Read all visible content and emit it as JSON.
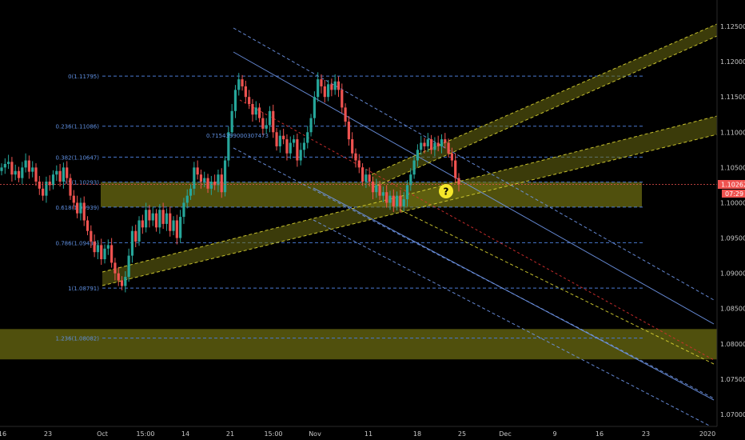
{
  "chart_data": {
    "type": "candlestick",
    "title": "",
    "price_scale": {
      "ticks": [
        "1.12500",
        "1.12000",
        "1.11500",
        "1.11000",
        "1.10500",
        "1.10000",
        "1.09500",
        "1.09000",
        "1.08500",
        "1.08000",
        "1.07500",
        "1.07000"
      ],
      "range": [
        1.0685,
        1.127
      ]
    },
    "time_axis": {
      "labels": [
        "16",
        "23",
        "Oct",
        "15:00",
        "14",
        "21",
        "15:00",
        "Nov",
        "11",
        "18",
        "25",
        "Dec",
        "9",
        "16",
        "23",
        "2020"
      ]
    },
    "current_price": {
      "label": "1.10262",
      "value": 1.10262,
      "countdown": "07:29"
    },
    "fibonacci": [
      {
        "ratio": "0",
        "label": "0(1.11795)",
        "value": 1.11795
      },
      {
        "ratio": "0.236",
        "label": "0.236(1.11086)",
        "value": 1.11086
      },
      {
        "ratio": "0.382",
        "label": "0.382(1.10647)",
        "value": 1.10647
      },
      {
        "ratio": "0.5",
        "label": "0.5(1.10293)",
        "value": 1.10293
      },
      {
        "ratio": "0.618",
        "label": "0.618(1.09939)",
        "value": 1.09939
      },
      {
        "ratio": "0.786",
        "label": "0.786(1.09434)",
        "value": 1.09434
      },
      {
        "ratio": "1",
        "label": "1(1.08791)",
        "value": 1.08791
      },
      {
        "ratio": "1.236",
        "label": "1.236(1.08082)",
        "value": 1.08082
      }
    ],
    "annotation": {
      "label": "0.7154399000307473"
    },
    "question_marker": "?",
    "zones": [
      {
        "name": "support-zone-upper",
        "from": 1.09939,
        "to": 1.10293
      },
      {
        "name": "support-zone-lower",
        "from": 1.0778,
        "to": 1.0821
      }
    ],
    "colors": {
      "background": "#000000",
      "bull": "#26a69a",
      "bear": "#ef5350",
      "fib": "#4a78d0",
      "channel": "#6f96e8",
      "zone": "#6b6b12",
      "yellow_line": "#d8d232",
      "red_line": "#d83030",
      "marker": "#f5e72a"
    },
    "candles_close": [
      1.105,
      1.1055,
      1.1058,
      1.104,
      1.1045,
      1.1035,
      1.105,
      1.106,
      1.1044,
      1.105,
      1.103,
      1.102,
      1.101,
      1.103,
      1.1025,
      1.104,
      1.1045,
      1.103,
      1.105,
      1.1035,
      1.101,
      1.1,
      1.0985,
      1.1,
      1.0975,
      1.096,
      1.0945,
      1.093,
      1.094,
      1.092,
      1.0935,
      1.094,
      1.0915,
      1.09,
      1.089,
      1.0882,
      1.0895,
      1.0925,
      1.096,
      1.0945,
      1.0975,
      1.0965,
      1.099,
      1.0975,
      1.0985,
      1.0965,
      1.099,
      1.097,
      1.0985,
      1.096,
      1.0975,
      1.095,
      1.098,
      1.1,
      1.101,
      1.102,
      1.105,
      1.104,
      1.103,
      1.1035,
      1.102,
      1.103,
      1.1025,
      1.104,
      1.1015,
      1.106,
      1.11,
      1.113,
      1.116,
      1.1175,
      1.1165,
      1.115,
      1.114,
      1.1125,
      1.1135,
      1.112,
      1.1105,
      1.111,
      1.113,
      1.11,
      1.108,
      1.1095,
      1.109,
      1.107,
      1.1085,
      1.109,
      1.106,
      1.1075,
      1.1085,
      1.11,
      1.112,
      1.115,
      1.1175,
      1.1165,
      1.115,
      1.1168,
      1.116,
      1.1172,
      1.116,
      1.1135,
      1.1115,
      1.109,
      1.107,
      1.106,
      1.105,
      1.103,
      1.104,
      1.103,
      1.1015,
      1.1025,
      1.101,
      1.1015,
      1.1,
      1.101,
      1.0995,
      1.101,
      1.0995,
      1.1005,
      1.1025,
      1.104,
      1.106,
      1.1075,
      1.1085,
      1.108,
      1.109,
      1.1075,
      1.1085,
      1.108,
      1.109,
      1.1085,
      1.107,
      1.106,
      1.1035,
      1.1026
    ]
  }
}
